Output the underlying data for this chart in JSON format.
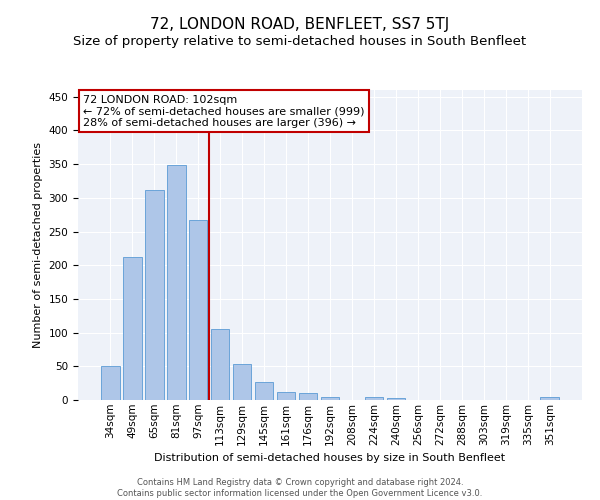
{
  "title": "72, LONDON ROAD, BENFLEET, SS7 5TJ",
  "subtitle": "Size of property relative to semi-detached houses in South Benfleet",
  "xlabel": "Distribution of semi-detached houses by size in South Benfleet",
  "ylabel": "Number of semi-detached properties",
  "categories": [
    "34sqm",
    "49sqm",
    "65sqm",
    "81sqm",
    "97sqm",
    "113sqm",
    "129sqm",
    "145sqm",
    "161sqm",
    "176sqm",
    "192sqm",
    "208sqm",
    "224sqm",
    "240sqm",
    "256sqm",
    "272sqm",
    "288sqm",
    "303sqm",
    "319sqm",
    "335sqm",
    "351sqm"
  ],
  "values": [
    50,
    212,
    312,
    349,
    267,
    105,
    53,
    27,
    12,
    11,
    5,
    0,
    5,
    3,
    0,
    0,
    0,
    0,
    0,
    0,
    4
  ],
  "bar_color": "#aec6e8",
  "bar_edge_color": "#5b9bd5",
  "vline_x": 4.5,
  "vline_color": "#c00000",
  "annotation_text": "72 LONDON ROAD: 102sqm\n← 72% of semi-detached houses are smaller (999)\n28% of semi-detached houses are larger (396) →",
  "annotation_box_color": "#ffffff",
  "annotation_box_edge_color": "#c00000",
  "ylim": [
    0,
    460
  ],
  "yticks": [
    0,
    50,
    100,
    150,
    200,
    250,
    300,
    350,
    400,
    450
  ],
  "background_color": "#eef2f9",
  "footer_text": "Contains HM Land Registry data © Crown copyright and database right 2024.\nContains public sector information licensed under the Open Government Licence v3.0.",
  "title_fontsize": 11,
  "subtitle_fontsize": 9.5,
  "axis_label_fontsize": 8,
  "tick_fontsize": 7.5,
  "annotation_fontsize": 8,
  "footer_fontsize": 6
}
